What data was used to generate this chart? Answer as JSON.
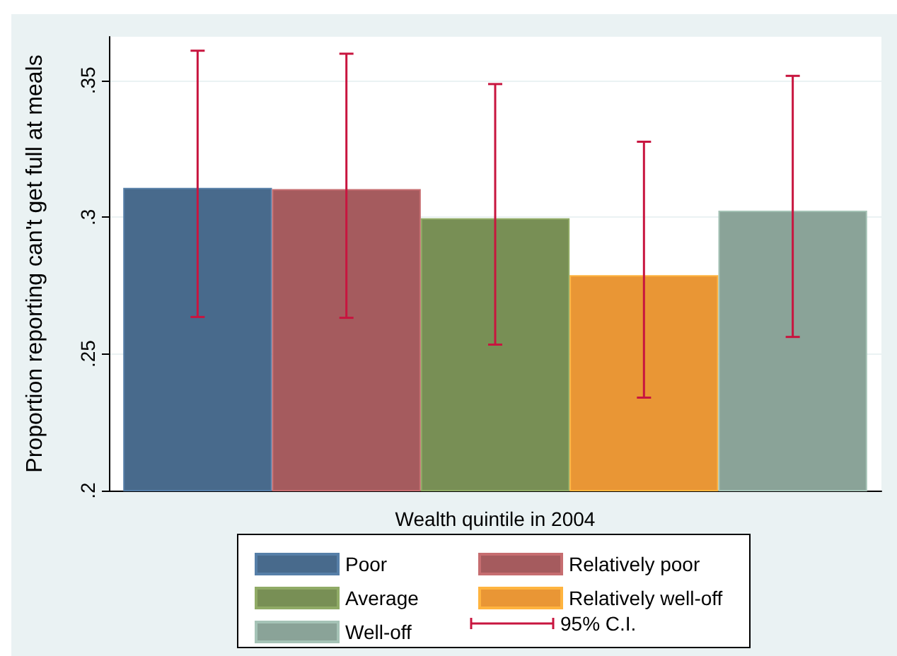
{
  "chart_data": {
    "type": "bar",
    "xlabel": "Wealth quintile in 2004",
    "ylabel": "Proportion reporting can't get full at meals",
    "categories": [
      null
    ],
    "series": [
      {
        "name": "Poor",
        "color": "#486a8c",
        "values": [
          0.3107
        ],
        "errors": [
          [
            0.2635,
            0.3609
          ]
        ]
      },
      {
        "name": "Relatively poor",
        "color": "#a55b5e",
        "values": [
          0.3103
        ],
        "errors": [
          [
            0.2632,
            0.3598
          ]
        ]
      },
      {
        "name": "Average",
        "color": "#788f55",
        "values": [
          0.2996
        ],
        "errors": [
          [
            0.2534,
            0.3487
          ]
        ]
      },
      {
        "name": "Relatively well-off",
        "color": "#e99635",
        "values": [
          0.2788
        ],
        "errors": [
          [
            0.234,
            0.3276
          ]
        ]
      },
      {
        "name": "Well-off",
        "color": "#8aa398",
        "values": [
          0.3024
        ],
        "errors": [
          [
            0.2562,
            0.3517
          ]
        ]
      }
    ],
    "ylim": [
      0.2,
      0.366
    ],
    "yticks": [
      {
        "value": 0.2,
        "label": ".2"
      },
      {
        "value": 0.25,
        "label": ".25"
      },
      {
        "value": 0.3,
        "label": ".3"
      },
      {
        "value": 0.35,
        "label": ".35"
      }
    ],
    "annotations": [
      "95% C.I."
    ],
    "grid": "y",
    "legend": "bottom"
  }
}
